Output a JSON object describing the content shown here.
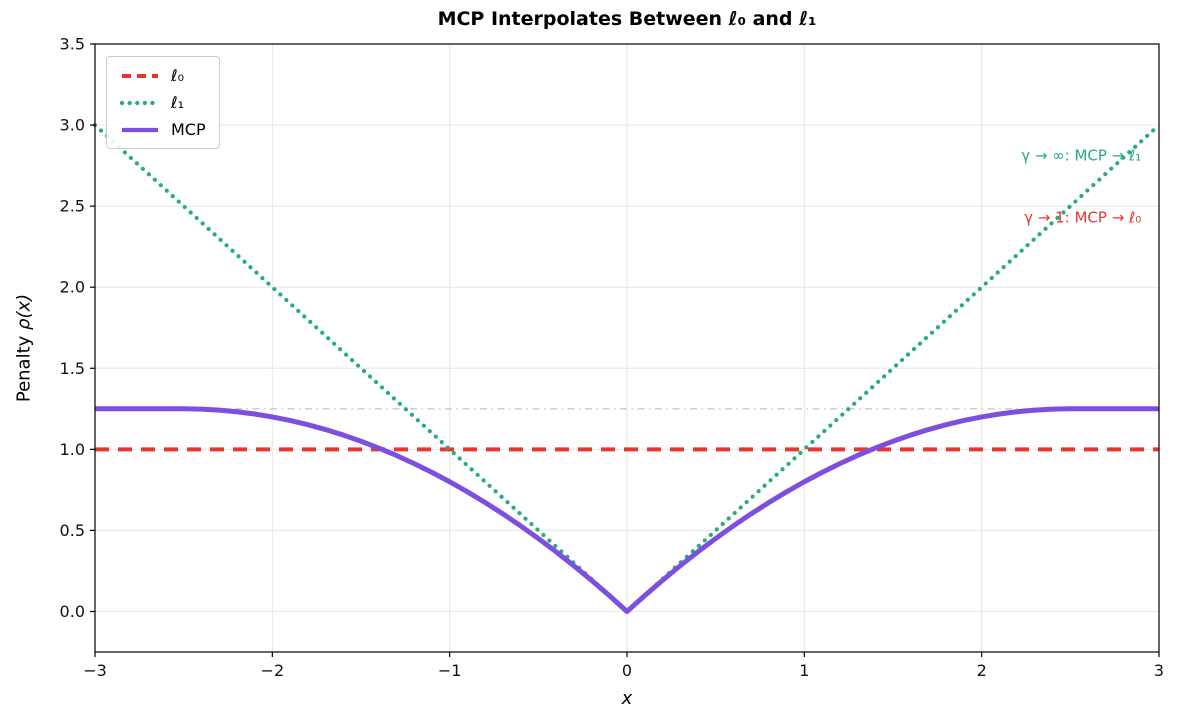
{
  "chart_data": {
    "type": "line",
    "title": "MCP Interpolates Between ℓ₀ and ℓ₁",
    "xlabel": "x",
    "ylabel": "Penalty ρ(x)",
    "ylabel_parts": {
      "text": "Penalty ",
      "math": "ρ(x)"
    },
    "xlim": [
      -3,
      3
    ],
    "ylim": [
      -0.25,
      3.5
    ],
    "x_ticks": [
      -3,
      -2,
      -1,
      0,
      1,
      2,
      3
    ],
    "x_tick_labels": [
      "−3",
      "−2",
      "−1",
      "0",
      "1",
      "2",
      "3"
    ],
    "y_ticks": [
      0.0,
      0.5,
      1.0,
      1.5,
      2.0,
      2.5,
      3.0,
      3.5
    ],
    "y_tick_labels": [
      "0.0",
      "0.5",
      "1.0",
      "1.5",
      "2.0",
      "2.5",
      "3.0",
      "3.5"
    ],
    "grid": true,
    "grid_color": "#e6e6e6",
    "legend_position": "upper-left",
    "series": [
      {
        "id": "mcp-saturation-level",
        "name": "saturation level 1.25",
        "color": "#c8c2ee",
        "style": "dashdot",
        "width": 1.3,
        "legend": false,
        "x": [
          -3,
          3
        ],
        "y": [
          1.25,
          1.25
        ]
      },
      {
        "id": "l0",
        "name": "ℓ₀",
        "color": "#e5372e",
        "style": "dashed",
        "width": 4,
        "legend": true,
        "x": [
          -3,
          3
        ],
        "y": [
          1,
          1
        ]
      },
      {
        "id": "l1",
        "name": "ℓ₁",
        "color": "#27ad7a",
        "style": "dotted",
        "width": 4.2,
        "legend": true,
        "x": [
          -3,
          0,
          3
        ],
        "y": [
          3,
          0,
          3
        ]
      },
      {
        "id": "mcp",
        "name": "MCP",
        "color": "#7c4fe0",
        "style": "solid",
        "width": 5,
        "legend": true,
        "x": [
          -3,
          -2.9,
          -2.8,
          -2.7,
          -2.6,
          -2.5,
          -2.4,
          -2.3,
          -2.2,
          -2.1,
          -2,
          -1.9,
          -1.8,
          -1.7,
          -1.6,
          -1.5,
          -1.4,
          -1.3,
          -1.2,
          -1.1,
          -1,
          -0.9,
          -0.8,
          -0.7,
          -0.6,
          -0.5,
          -0.4,
          -0.3,
          -0.2,
          -0.1,
          0,
          0.1,
          0.2,
          0.3,
          0.4,
          0.5,
          0.6,
          0.7,
          0.8,
          0.9,
          1,
          1.1,
          1.2,
          1.3,
          1.4,
          1.5,
          1.6,
          1.7,
          1.8,
          1.9,
          2,
          2.1,
          2.2,
          2.3,
          2.4,
          2.5,
          2.6,
          2.7,
          2.8,
          2.9,
          3
        ],
        "y": [
          1.25,
          1.25,
          1.25,
          1.25,
          1.25,
          1.25,
          1.248,
          1.242,
          1.232,
          1.218,
          1.2,
          1.178,
          1.152,
          1.122,
          1.088,
          1.05,
          1.008,
          0.962,
          0.912,
          0.858,
          0.8,
          0.738,
          0.672,
          0.602,
          0.528,
          0.45,
          0.368,
          0.282,
          0.192,
          0.098,
          0,
          0.098,
          0.192,
          0.282,
          0.368,
          0.45,
          0.528,
          0.602,
          0.672,
          0.738,
          0.8,
          0.858,
          0.912,
          0.962,
          1.008,
          1.05,
          1.088,
          1.122,
          1.152,
          1.178,
          1.2,
          1.218,
          1.232,
          1.242,
          1.248,
          1.25,
          1.25,
          1.25,
          1.25,
          1.25,
          1.25
        ]
      }
    ],
    "annotations": [
      {
        "text": "γ → ∞:  MCP → ℓ₁",
        "x": 2.9,
        "y": 2.78,
        "anchor": "end",
        "color": "#27ad7a"
      },
      {
        "text": "γ → 1:  MCP → ℓ₀",
        "x": 2.9,
        "y": 2.4,
        "anchor": "end",
        "color": "#e5372e"
      }
    ]
  }
}
